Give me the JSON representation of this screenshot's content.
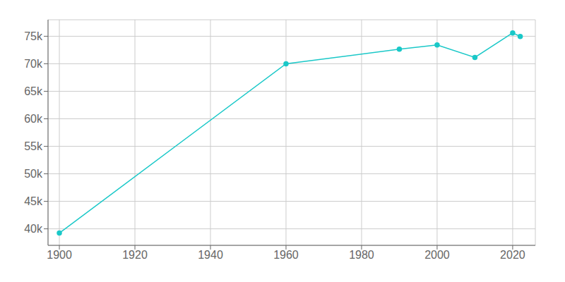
{
  "chart_data": {
    "type": "line",
    "x": [
      1900,
      1960,
      1990,
      2000,
      2010,
      2020,
      2022
    ],
    "values": [
      39231,
      70000,
      72644,
      73407,
      71148,
      75604,
      74970
    ],
    "color": "#1AC8C8",
    "marker": "circle",
    "xlim": [
      1897,
      2026
    ],
    "ylim": [
      37000,
      78000
    ],
    "xticks": [
      1900,
      1920,
      1940,
      1960,
      1980,
      2000,
      2020
    ],
    "yticks": [
      {
        "value": 40000,
        "label": "40k"
      },
      {
        "value": 45000,
        "label": "45k"
      },
      {
        "value": 50000,
        "label": "50k"
      },
      {
        "value": 55000,
        "label": "55k"
      },
      {
        "value": 60000,
        "label": "60k"
      },
      {
        "value": 65000,
        "label": "65k"
      },
      {
        "value": 70000,
        "label": "70k"
      },
      {
        "value": 75000,
        "label": "75k"
      }
    ],
    "grid": true
  }
}
